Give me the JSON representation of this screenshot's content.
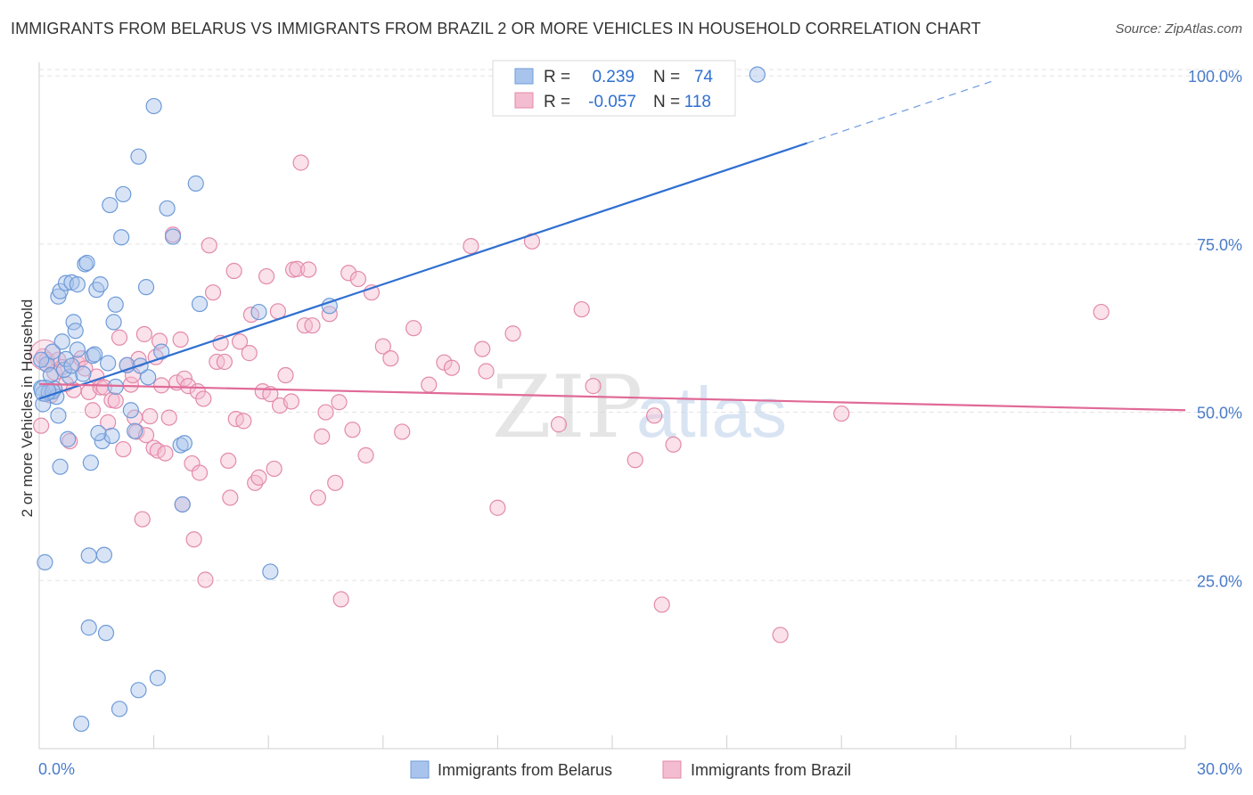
{
  "title": "IMMIGRANTS FROM BELARUS VS IMMIGRANTS FROM BRAZIL 2 OR MORE VEHICLES IN HOUSEHOLD CORRELATION CHART",
  "source": "Source: ZipAtlas.com",
  "watermark": {
    "zip": "ZIP",
    "atlas": "atlas"
  },
  "legend": {
    "r_label": "R =",
    "n_label": "N =",
    "rows": [
      {
        "r": "0.239",
        "n": "74"
      },
      {
        "r": "-0.057",
        "n": "118"
      }
    ]
  },
  "colors": {
    "blue": "#6e9bd8",
    "blue_fill": "#a9c4ec",
    "blue_line": "#2f6fd1",
    "pink": "#e38aaa",
    "pink_fill": "#f4bcd0",
    "pink_line": "#e06a97"
  },
  "chart_data": {
    "type": "scatter",
    "title": "IMMIGRANTS FROM BELARUS VS IMMIGRANTS FROM BRAZIL 2 OR MORE VEHICLES IN HOUSEHOLD CORRELATION CHART",
    "xlabel": "",
    "ylabel": "2 or more Vehicles in Household",
    "xlim": [
      0,
      30
    ],
    "ylim": [
      0,
      102
    ],
    "x_tick_labels": [
      "0.0%",
      "30.0%"
    ],
    "y_ticks": [
      25,
      50,
      75,
      100
    ],
    "y_tick_labels": [
      "25.0%",
      "50.0%",
      "75.0%",
      "100.0%"
    ],
    "series": [
      {
        "name": "Immigrants from Belarus",
        "r": 0.239,
        "n": 74,
        "trend": {
          "x0": 0,
          "y0": 52.0,
          "x1": 20.1,
          "y1": 90.0,
          "dashed_to_x": 25.0,
          "dashed_to_y": 99.3
        },
        "points": [
          [
            0.05,
            53.6
          ],
          [
            0.1,
            52.8
          ],
          [
            0.1,
            51.2
          ],
          [
            0.2,
            57.1
          ],
          [
            0.3,
            55.5
          ],
          [
            0.35,
            59.0
          ],
          [
            0.4,
            53.5
          ],
          [
            0.5,
            49.5
          ],
          [
            0.5,
            67.2
          ],
          [
            0.55,
            68.0
          ],
          [
            0.6,
            60.5
          ],
          [
            0.7,
            69.2
          ],
          [
            0.75,
            46.0
          ],
          [
            0.8,
            55.3
          ],
          [
            0.85,
            69.3
          ],
          [
            0.9,
            63.4
          ],
          [
            1.0,
            59.3
          ],
          [
            1.0,
            69.0
          ],
          [
            1.2,
            72.0
          ],
          [
            1.25,
            72.2
          ],
          [
            1.3,
            28.7
          ],
          [
            1.3,
            18.0
          ],
          [
            1.4,
            58.4
          ],
          [
            1.5,
            68.2
          ],
          [
            1.6,
            69.0
          ],
          [
            1.65,
            45.7
          ],
          [
            1.7,
            28.8
          ],
          [
            1.75,
            17.2
          ],
          [
            1.8,
            57.3
          ],
          [
            1.85,
            80.8
          ],
          [
            1.9,
            46.5
          ],
          [
            1.95,
            63.4
          ],
          [
            2.0,
            53.8
          ],
          [
            2.0,
            66.0
          ],
          [
            2.1,
            5.9
          ],
          [
            2.15,
            76.0
          ],
          [
            2.2,
            82.4
          ],
          [
            2.3,
            57.0
          ],
          [
            2.4,
            50.3
          ],
          [
            2.6,
            88.0
          ],
          [
            2.6,
            8.7
          ],
          [
            2.8,
            68.6
          ],
          [
            2.85,
            55.2
          ],
          [
            3.0,
            95.5
          ],
          [
            3.1,
            10.5
          ],
          [
            3.2,
            59.0
          ],
          [
            3.35,
            80.3
          ],
          [
            3.5,
            76.1
          ],
          [
            3.7,
            45.1
          ],
          [
            3.75,
            36.3
          ],
          [
            3.8,
            45.4
          ],
          [
            4.1,
            84.0
          ],
          [
            4.2,
            66.1
          ],
          [
            5.75,
            64.9
          ],
          [
            6.05,
            26.3
          ],
          [
            7.6,
            65.8
          ],
          [
            18.8,
            100.2
          ],
          [
            0.05,
            57.8
          ],
          [
            0.15,
            27.7
          ],
          [
            0.25,
            53.0
          ],
          [
            0.45,
            52.3
          ],
          [
            0.55,
            41.9
          ],
          [
            0.65,
            56.3
          ],
          [
            0.7,
            57.9
          ],
          [
            0.95,
            62.1
          ],
          [
            1.15,
            55.7
          ],
          [
            1.35,
            42.5
          ],
          [
            1.1,
            3.7
          ],
          [
            1.45,
            58.6
          ],
          [
            1.55,
            46.9
          ],
          [
            2.5,
            47.2
          ],
          [
            2.65,
            56.9
          ],
          [
            0.35,
            53.1
          ],
          [
            0.85,
            56.9
          ]
        ]
      },
      {
        "name": "Immigrants from Brazil",
        "r": -0.057,
        "n": 118,
        "trend": {
          "x0": 0,
          "y0": 54.2,
          "x1": 30,
          "y1": 50.3
        },
        "points": [
          [
            0.1,
            58.3
          ],
          [
            0.2,
            57.8
          ],
          [
            0.3,
            52.5
          ],
          [
            0.4,
            55.9
          ],
          [
            0.5,
            57.8
          ],
          [
            0.6,
            56.7
          ],
          [
            0.7,
            54.2
          ],
          [
            0.8,
            45.7
          ],
          [
            0.9,
            53.3
          ],
          [
            1.0,
            57.3
          ],
          [
            1.1,
            58.0
          ],
          [
            1.2,
            56.5
          ],
          [
            1.3,
            53.0
          ],
          [
            1.4,
            50.3
          ],
          [
            1.5,
            55.3
          ],
          [
            1.6,
            53.7
          ],
          [
            1.7,
            53.7
          ],
          [
            1.8,
            48.5
          ],
          [
            1.9,
            51.8
          ],
          [
            2.0,
            51.7
          ],
          [
            2.1,
            61.1
          ],
          [
            2.2,
            44.5
          ],
          [
            2.3,
            57.0
          ],
          [
            2.4,
            54.1
          ],
          [
            2.45,
            55.5
          ],
          [
            2.5,
            49.2
          ],
          [
            2.55,
            47.1
          ],
          [
            2.6,
            57.9
          ],
          [
            2.7,
            34.1
          ],
          [
            2.75,
            61.6
          ],
          [
            2.8,
            46.6
          ],
          [
            2.9,
            49.4
          ],
          [
            3.0,
            44.7
          ],
          [
            3.05,
            58.2
          ],
          [
            3.1,
            44.3
          ],
          [
            3.15,
            60.6
          ],
          [
            3.2,
            54.0
          ],
          [
            3.3,
            43.9
          ],
          [
            3.4,
            49.2
          ],
          [
            3.5,
            76.4
          ],
          [
            3.6,
            54.4
          ],
          [
            3.7,
            60.8
          ],
          [
            3.75,
            36.3
          ],
          [
            3.8,
            55.0
          ],
          [
            3.9,
            53.9
          ],
          [
            4.0,
            42.4
          ],
          [
            4.05,
            31.1
          ],
          [
            4.15,
            53.1
          ],
          [
            4.2,
            41.0
          ],
          [
            4.3,
            52.0
          ],
          [
            4.35,
            25.1
          ],
          [
            4.45,
            74.8
          ],
          [
            4.55,
            67.8
          ],
          [
            4.65,
            57.5
          ],
          [
            4.75,
            60.3
          ],
          [
            4.85,
            57.5
          ],
          [
            4.95,
            42.8
          ],
          [
            5.0,
            37.3
          ],
          [
            5.1,
            71.0
          ],
          [
            5.15,
            49.0
          ],
          [
            5.25,
            60.5
          ],
          [
            5.35,
            48.7
          ],
          [
            5.5,
            58.8
          ],
          [
            5.55,
            64.5
          ],
          [
            5.65,
            39.5
          ],
          [
            5.75,
            40.3
          ],
          [
            5.85,
            53.1
          ],
          [
            5.95,
            70.2
          ],
          [
            6.05,
            52.7
          ],
          [
            6.15,
            41.6
          ],
          [
            6.25,
            65.0
          ],
          [
            6.3,
            51.0
          ],
          [
            6.45,
            55.5
          ],
          [
            6.6,
            51.6
          ],
          [
            6.65,
            71.2
          ],
          [
            6.75,
            71.3
          ],
          [
            6.85,
            87.1
          ],
          [
            6.95,
            62.9
          ],
          [
            7.05,
            71.2
          ],
          [
            7.15,
            62.9
          ],
          [
            7.3,
            37.3
          ],
          [
            7.4,
            46.4
          ],
          [
            7.5,
            50.0
          ],
          [
            7.6,
            64.6
          ],
          [
            7.75,
            39.5
          ],
          [
            7.85,
            51.5
          ],
          [
            7.9,
            22.2
          ],
          [
            8.1,
            70.7
          ],
          [
            8.2,
            47.4
          ],
          [
            8.35,
            69.8
          ],
          [
            8.55,
            43.6
          ],
          [
            8.7,
            67.8
          ],
          [
            9.0,
            59.8
          ],
          [
            9.2,
            58.0
          ],
          [
            9.5,
            47.1
          ],
          [
            9.8,
            62.5
          ],
          [
            10.2,
            54.1
          ],
          [
            10.6,
            57.4
          ],
          [
            10.8,
            56.6
          ],
          [
            11.3,
            74.7
          ],
          [
            11.6,
            59.4
          ],
          [
            11.7,
            56.1
          ],
          [
            12.0,
            35.8
          ],
          [
            12.4,
            61.7
          ],
          [
            12.9,
            75.4
          ],
          [
            13.6,
            48.2
          ],
          [
            14.2,
            65.3
          ],
          [
            14.5,
            53.9
          ],
          [
            15.6,
            42.9
          ],
          [
            16.1,
            49.5
          ],
          [
            16.3,
            21.4
          ],
          [
            16.6,
            45.2
          ],
          [
            19.4,
            16.9
          ],
          [
            21.0,
            49.8
          ],
          [
            27.8,
            64.9
          ],
          [
            0.05,
            48.0
          ]
        ]
      }
    ]
  },
  "bottom_legend": [
    "Immigrants from Belarus",
    "Immigrants from Brazil"
  ]
}
